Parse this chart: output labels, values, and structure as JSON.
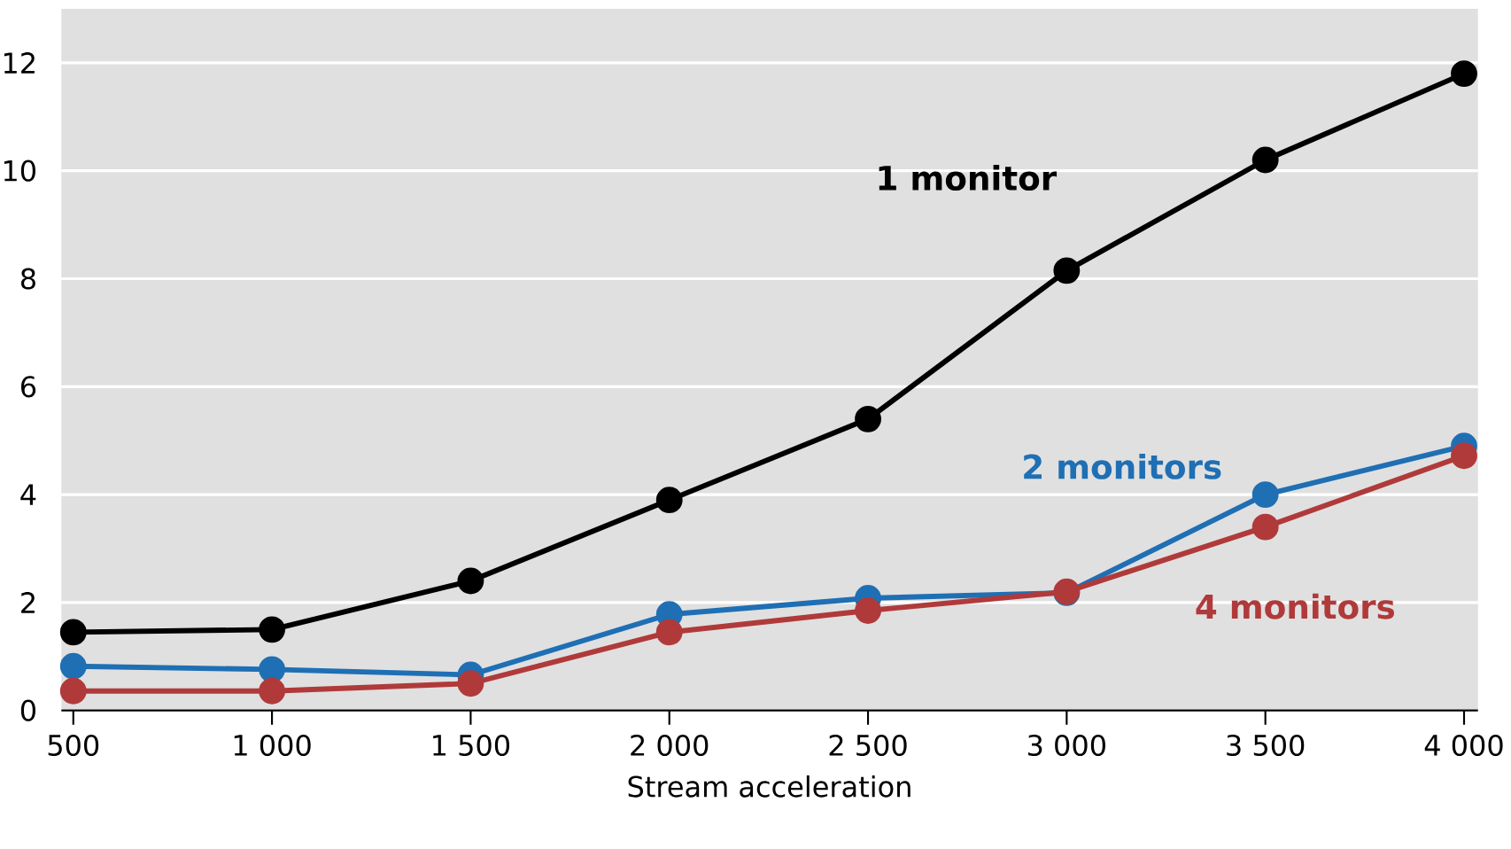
{
  "chart_data": {
    "type": "line",
    "xlabel": "Stream acceleration",
    "x": [
      500,
      1000,
      1500,
      2000,
      2500,
      3000,
      3500,
      4000
    ],
    "series": [
      {
        "name": "1 monitor",
        "color": "#000000",
        "values": [
          1.45,
          1.5,
          2.4,
          3.9,
          5.4,
          8.15,
          10.2,
          11.8
        ]
      },
      {
        "name": "2 monitors",
        "color": "#1f6fb4",
        "values": [
          0.82,
          0.76,
          0.66,
          1.78,
          2.08,
          2.18,
          4.0,
          4.9
        ]
      },
      {
        "name": "4 monitors",
        "color": "#b03a3a",
        "values": [
          0.36,
          0.36,
          0.5,
          1.45,
          1.85,
          2.2,
          3.4,
          4.72
        ]
      }
    ],
    "xlim": [
      470,
      4035
    ],
    "ylim": [
      0,
      13
    ],
    "xticks": [
      500,
      {
        "value": 1000,
        "label": "1 000"
      },
      {
        "value": 1500,
        "label": "1 500"
      },
      {
        "value": 2000,
        "label": "2 000"
      },
      {
        "value": 2500,
        "label": "2 500"
      },
      {
        "value": 3000,
        "label": "3 000"
      },
      {
        "value": 3500,
        "label": "3 500"
      },
      {
        "value": 4000,
        "label": "4 000"
      }
    ],
    "yticks": [
      0,
      2,
      4,
      6,
      8,
      10,
      12
    ],
    "grid": "y",
    "marker": "circle",
    "line_style": "solid",
    "legend": false
  }
}
